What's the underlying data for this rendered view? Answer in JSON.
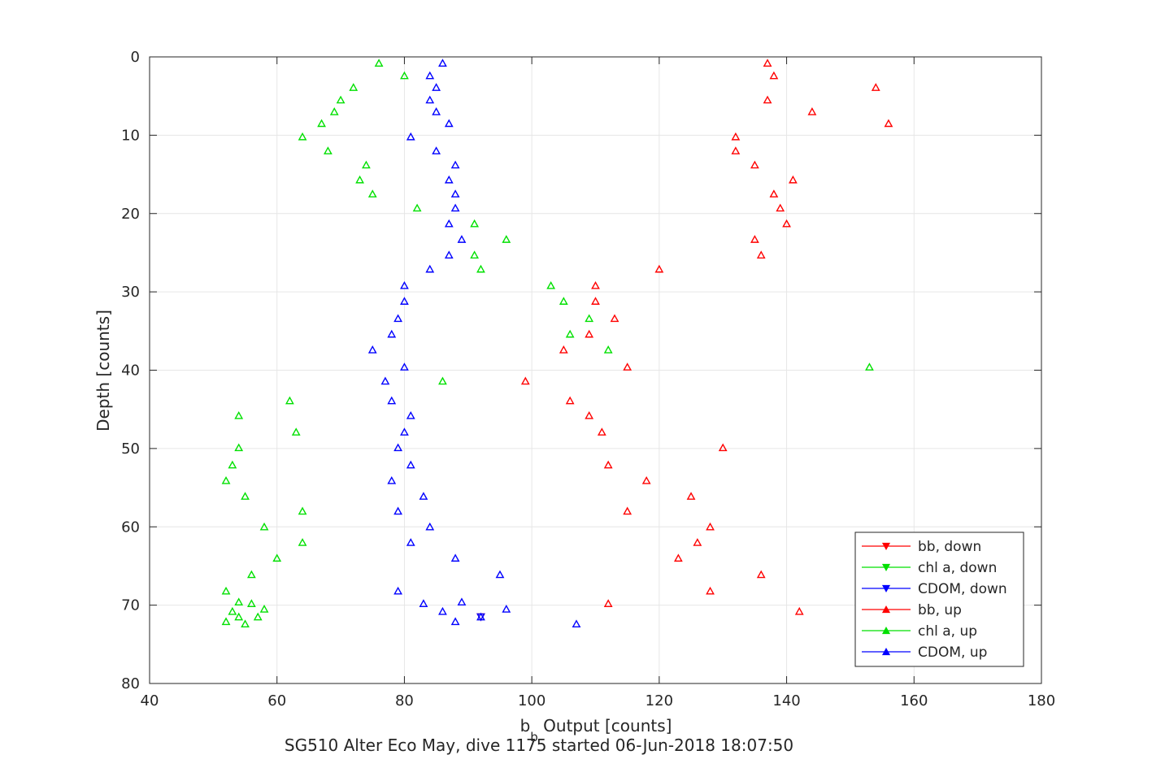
{
  "chart_data": {
    "type": "scatter",
    "title": "",
    "xlabel_main": "b",
    "xlabel_sub": "b",
    "xlabel_rest": " Output [counts]",
    "ylabel": "Depth [counts]",
    "caption": "SG510 Alter Eco May, dive 1175 started 06-Jun-2018 18:07:50",
    "xlim": [
      40,
      180
    ],
    "ylim": [
      0,
      80
    ],
    "y_reversed": true,
    "x_ticks": [
      "40",
      "60",
      "80",
      "100",
      "120",
      "140",
      "160",
      "180"
    ],
    "y_ticks": [
      "0",
      "10",
      "20",
      "30",
      "40",
      "50",
      "60",
      "70",
      "80"
    ],
    "grid": true,
    "legend_position": "bottom-right",
    "series": [
      {
        "name": "bb, down",
        "color": "#ff0000",
        "marker": "triangle-down",
        "points": [
          [
            92,
            71.5
          ]
        ]
      },
      {
        "name": "chl a, down",
        "color": "#00e000",
        "marker": "triangle-down",
        "points": []
      },
      {
        "name": "CDOM, down",
        "color": "#0000ff",
        "marker": "triangle-down",
        "points": [
          [
            92,
            71.5
          ]
        ]
      },
      {
        "name": "bb, up",
        "color": "#ff0000",
        "marker": "triangle-up",
        "points": [
          [
            137,
            0.8
          ],
          [
            138,
            2.4
          ],
          [
            154,
            3.9
          ],
          [
            137,
            5.5
          ],
          [
            144,
            7.0
          ],
          [
            156,
            8.5
          ],
          [
            132,
            10.2
          ],
          [
            132,
            12.0
          ],
          [
            135,
            13.8
          ],
          [
            141,
            15.7
          ],
          [
            138,
            17.5
          ],
          [
            139,
            19.3
          ],
          [
            140,
            21.3
          ],
          [
            135,
            23.3
          ],
          [
            136,
            25.3
          ],
          [
            120,
            27.1
          ],
          [
            110,
            29.2
          ],
          [
            110,
            31.2
          ],
          [
            113,
            33.4
          ],
          [
            109,
            35.4
          ],
          [
            105,
            37.4
          ],
          [
            115,
            39.6
          ],
          [
            99,
            41.4
          ],
          [
            106,
            43.9
          ],
          [
            109,
            45.8
          ],
          [
            111,
            47.9
          ],
          [
            130,
            49.9
          ],
          [
            112,
            52.1
          ],
          [
            118,
            54.1
          ],
          [
            125,
            56.1
          ],
          [
            115,
            58.0
          ],
          [
            128,
            60.0
          ],
          [
            126,
            62.0
          ],
          [
            123,
            64.0
          ],
          [
            136,
            66.1
          ],
          [
            128,
            68.2
          ],
          [
            112,
            69.8
          ],
          [
            142,
            70.8
          ]
        ]
      },
      {
        "name": "chl a, up",
        "color": "#00e000",
        "marker": "triangle-up",
        "points": [
          [
            76,
            0.8
          ],
          [
            80,
            2.4
          ],
          [
            72,
            3.9
          ],
          [
            70,
            5.5
          ],
          [
            69,
            7.0
          ],
          [
            67,
            8.5
          ],
          [
            64,
            10.2
          ],
          [
            68,
            12.0
          ],
          [
            74,
            13.8
          ],
          [
            73,
            15.7
          ],
          [
            75,
            17.5
          ],
          [
            82,
            19.3
          ],
          [
            91,
            21.3
          ],
          [
            96,
            23.3
          ],
          [
            91,
            25.3
          ],
          [
            92,
            27.1
          ],
          [
            103,
            29.2
          ],
          [
            105,
            31.2
          ],
          [
            109,
            33.4
          ],
          [
            106,
            35.4
          ],
          [
            112,
            37.4
          ],
          [
            153,
            39.6
          ],
          [
            86,
            41.4
          ],
          [
            62,
            43.9
          ],
          [
            54,
            45.8
          ],
          [
            63,
            47.9
          ],
          [
            54,
            49.9
          ],
          [
            53,
            52.1
          ],
          [
            52,
            54.1
          ],
          [
            55,
            56.1
          ],
          [
            64,
            58.0
          ],
          [
            58,
            60.0
          ],
          [
            64,
            62.0
          ],
          [
            60,
            64.0
          ],
          [
            56,
            66.1
          ],
          [
            52,
            68.2
          ],
          [
            54,
            69.6
          ],
          [
            56,
            69.8
          ],
          [
            58,
            70.5
          ],
          [
            53,
            70.8
          ],
          [
            54,
            71.5
          ],
          [
            57,
            71.5
          ],
          [
            52,
            72.1
          ],
          [
            55,
            72.4
          ]
        ]
      },
      {
        "name": "CDOM, up",
        "color": "#0000ff",
        "marker": "triangle-up",
        "points": [
          [
            86,
            0.8
          ],
          [
            84,
            2.4
          ],
          [
            85,
            3.9
          ],
          [
            84,
            5.5
          ],
          [
            85,
            7.0
          ],
          [
            87,
            8.5
          ],
          [
            81,
            10.2
          ],
          [
            85,
            12.0
          ],
          [
            88,
            13.8
          ],
          [
            87,
            15.7
          ],
          [
            88,
            17.5
          ],
          [
            88,
            19.3
          ],
          [
            87,
            21.3
          ],
          [
            89,
            23.3
          ],
          [
            87,
            25.3
          ],
          [
            84,
            27.1
          ],
          [
            80,
            29.2
          ],
          [
            80,
            31.2
          ],
          [
            79,
            33.4
          ],
          [
            78,
            35.4
          ],
          [
            75,
            37.4
          ],
          [
            80,
            39.6
          ],
          [
            77,
            41.4
          ],
          [
            78,
            43.9
          ],
          [
            81,
            45.8
          ],
          [
            80,
            47.9
          ],
          [
            79,
            49.9
          ],
          [
            81,
            52.1
          ],
          [
            78,
            54.1
          ],
          [
            83,
            56.1
          ],
          [
            79,
            58.0
          ],
          [
            84,
            60.0
          ],
          [
            81,
            62.0
          ],
          [
            88,
            64.0
          ],
          [
            95,
            66.1
          ],
          [
            79,
            68.2
          ],
          [
            83,
            69.8
          ],
          [
            89,
            69.6
          ],
          [
            96,
            70.5
          ],
          [
            86,
            70.8
          ],
          [
            92,
            71.5
          ],
          [
            88,
            72.1
          ],
          [
            107,
            72.4
          ]
        ]
      }
    ]
  }
}
